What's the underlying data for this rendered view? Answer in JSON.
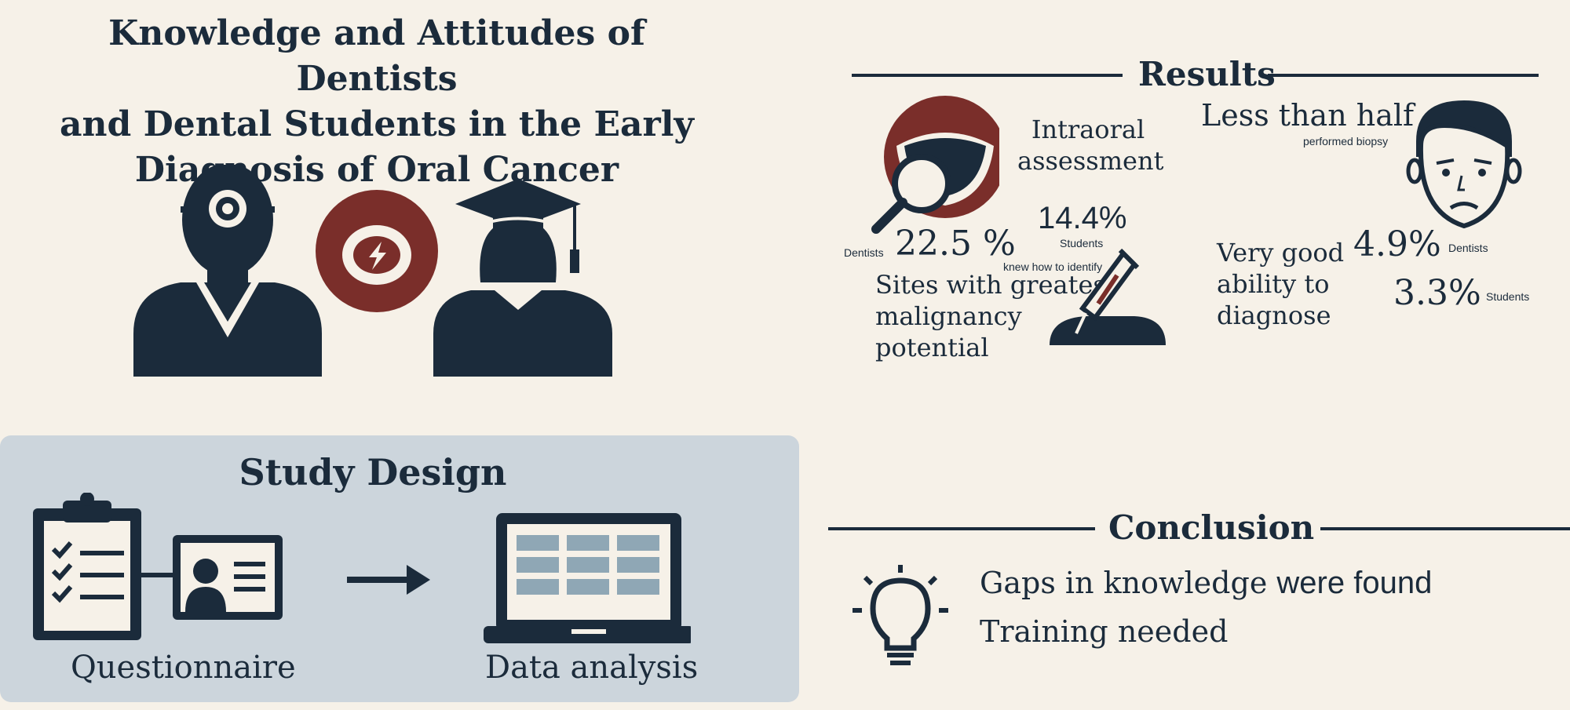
{
  "title": {
    "line1": "Knowledge and Attitudes of Dentists",
    "line2": "and Dental Students in the Early",
    "line3": "Diagnosis of Oral Cancer"
  },
  "study_design": {
    "heading": "Study Design",
    "steps": [
      "Questionnaire",
      "Data analysis"
    ]
  },
  "results": {
    "heading": "Results",
    "intraoral_line1": "Intraoral",
    "intraoral_line2": "assessment",
    "dentists_pct_1": "22.5 %",
    "dentists_label_1": "Dentists",
    "students_pct_1": "14.4%",
    "students_label_1": "Students",
    "knew_label": "knew how to identify",
    "sites_line1": "Sites with greatest",
    "sites_line2": "malignancy",
    "sites_line3": "potential",
    "biopsy_main": "Less than half",
    "biopsy_sub": "performed biopsy",
    "ability_line1": "Very good",
    "ability_line2": "ability to",
    "ability_line3": "diagnose",
    "dentists_pct_2": "4.9%",
    "dentists_label_2": "Dentists",
    "students_pct_2": "3.3%",
    "students_label_2": "Students"
  },
  "conclusion": {
    "heading": "Conclusion",
    "line1_a": "Gaps in knowledge",
    "line1_b": "were found",
    "line2": "Training needed"
  },
  "icons": {
    "dentist": "dentist-icon",
    "mouth_badge": "mouth-icon",
    "student": "graduate-icon",
    "clipboard": "clipboard-icon",
    "id_card": "id-card-icon",
    "arrow": "arrow-right-icon",
    "laptop": "laptop-icon",
    "magnifier_mouth": "mouth-magnifier-icon",
    "biopsy": "biopsy-icon",
    "worried_face": "worried-face-icon",
    "lightbulb": "lightbulb-icon"
  },
  "colors": {
    "navy": "#1b2b3b",
    "maroon": "#7a2e2a",
    "background": "#f6f1e8",
    "panel": "#ccd5dc",
    "table_cell": "#8fa7b5"
  }
}
